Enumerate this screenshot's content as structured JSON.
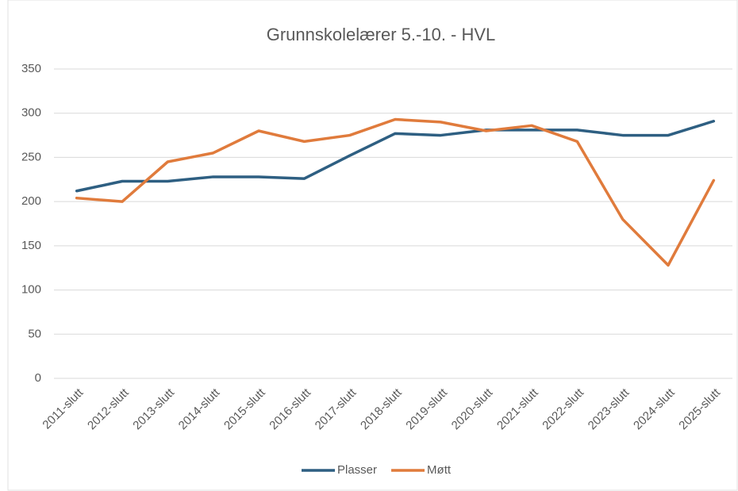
{
  "chart_data": {
    "type": "line",
    "title": "Grunnskolelærer 5.-10. - HVL",
    "categories": [
      "2011-slutt",
      "2012-slutt",
      "2013-slutt",
      "2014-slutt",
      "2015-slutt",
      "2016-slutt",
      "2017-slutt",
      "2018-slutt",
      "2019-slutt",
      "2020-slutt",
      "2021-slutt",
      "2022-slutt",
      "2023-slutt",
      "2024-slutt",
      "2025-slutt"
    ],
    "series": [
      {
        "name": "Plasser",
        "color": "#2e5f82",
        "values": [
          212,
          223,
          223,
          228,
          228,
          226,
          252,
          277,
          275,
          281,
          281,
          281,
          275,
          275,
          291
        ]
      },
      {
        "name": "Møtt",
        "color": "#e07b3c",
        "values": [
          204,
          200,
          245,
          255,
          280,
          268,
          275,
          293,
          290,
          280,
          286,
          268,
          180,
          128,
          224
        ]
      }
    ],
    "ylim": [
      0,
      350
    ],
    "yticks": [
      0,
      50,
      100,
      150,
      200,
      250,
      300,
      350
    ],
    "grid": true,
    "legend": "bottom"
  }
}
